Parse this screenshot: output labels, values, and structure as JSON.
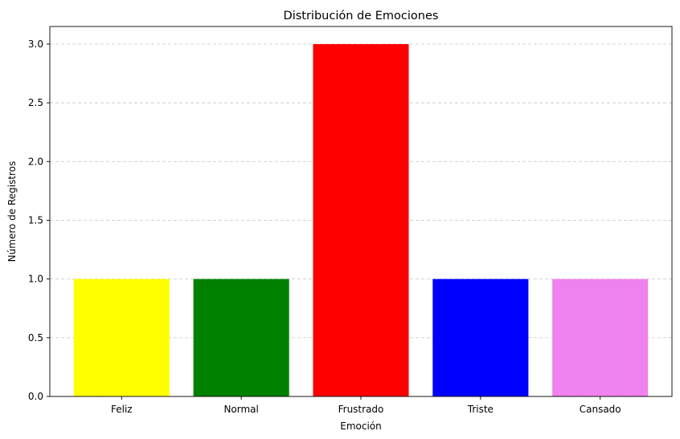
{
  "chart_data": {
    "type": "bar",
    "title": "Distribución de Emociones",
    "xlabel": "Emoción",
    "ylabel": "Número de Registros",
    "categories": [
      "Feliz",
      "Normal",
      "Frustrado",
      "Triste",
      "Cansado"
    ],
    "values": [
      1,
      1,
      3,
      1,
      1
    ],
    "colors": [
      "#ffff00",
      "#008000",
      "#ff0000",
      "#0000ff",
      "#ee82ee"
    ],
    "ylim": [
      0,
      3.15
    ],
    "yticks": [
      "0.0",
      "0.5",
      "1.0",
      "1.5",
      "2.0",
      "2.5",
      "3.0"
    ],
    "grid": {
      "axis": "y",
      "style": "dashed",
      "color": "#cccccc"
    },
    "legend": "none"
  }
}
